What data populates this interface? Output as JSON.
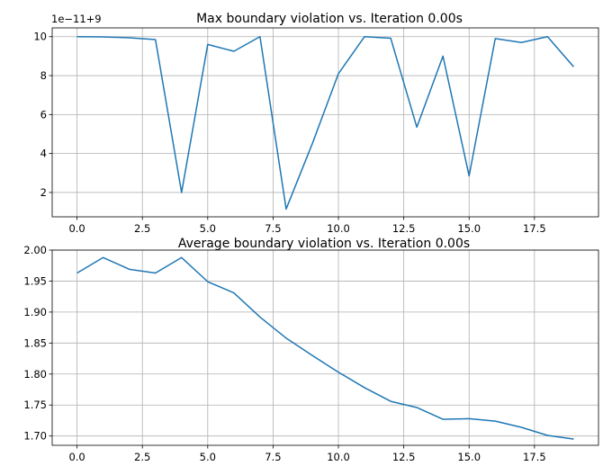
{
  "chart_data": [
    {
      "type": "line",
      "title": "Max boundary violation vs. Iteration 0.00s",
      "xlabel": "",
      "ylabel": "",
      "y_offset_label": "1e−11+9",
      "xlim": [
        -0.95,
        19.95
      ],
      "ylim": [
        0.75,
        10.45
      ],
      "x_ticks": [
        0.0,
        2.5,
        5.0,
        7.5,
        10.0,
        12.5,
        15.0,
        17.5
      ],
      "x_tick_labels": [
        "0.0",
        "2.5",
        "5.0",
        "7.5",
        "10.0",
        "12.5",
        "15.0",
        "17.5"
      ],
      "y_ticks": [
        2,
        4,
        6,
        8,
        10
      ],
      "y_tick_labels": [
        "2",
        "4",
        "6",
        "8",
        "10"
      ],
      "grid": true,
      "color": "#1f77b4",
      "x": [
        0,
        1,
        2,
        3,
        4,
        5,
        6,
        7,
        8,
        9,
        10,
        11,
        12,
        13,
        14,
        15,
        16,
        17,
        18,
        19
      ],
      "y": [
        10.0,
        9.99,
        9.94,
        9.85,
        2.0,
        9.6,
        9.25,
        10.0,
        1.15,
        4.5,
        8.1,
        10.0,
        9.92,
        5.35,
        9.0,
        2.85,
        9.9,
        9.7,
        10.0,
        8.45
      ]
    },
    {
      "type": "line",
      "title": "Average boundary violation vs. Iteration 0.00s",
      "xlabel": "",
      "ylabel": "",
      "xlim": [
        -0.95,
        19.95
      ],
      "ylim": [
        1.685,
        2.0
      ],
      "x_ticks": [
        0.0,
        2.5,
        5.0,
        7.5,
        10.0,
        12.5,
        15.0,
        17.5
      ],
      "x_tick_labels": [
        "0.0",
        "2.5",
        "5.0",
        "7.5",
        "10.0",
        "12.5",
        "15.0",
        "17.5"
      ],
      "y_ticks": [
        1.7,
        1.75,
        1.8,
        1.85,
        1.9,
        1.95,
        2.0
      ],
      "y_tick_labels": [
        "1.70",
        "1.75",
        "1.80",
        "1.85",
        "1.90",
        "1.95",
        "2.00"
      ],
      "grid": true,
      "color": "#1f77b4",
      "x": [
        0,
        1,
        2,
        3,
        4,
        5,
        6,
        7,
        8,
        9,
        10,
        11,
        12,
        13,
        14,
        15,
        16,
        17,
        18,
        19
      ],
      "y": [
        1.963,
        1.988,
        1.969,
        1.963,
        1.988,
        1.949,
        1.931,
        1.892,
        1.858,
        1.83,
        1.803,
        1.778,
        1.756,
        1.746,
        1.727,
        1.728,
        1.724,
        1.714,
        1.701,
        1.695
      ]
    }
  ]
}
